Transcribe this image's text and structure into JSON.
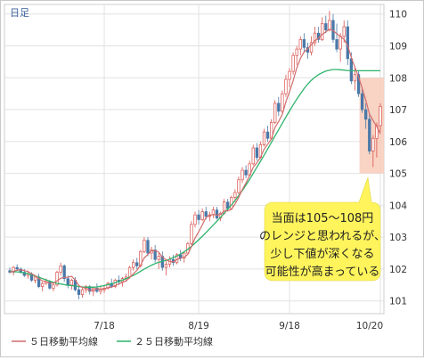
{
  "chart_data": {
    "type": "candlestick",
    "period_label": "日足",
    "x_tick_labels": [
      "7/18",
      "8/19",
      "9/18",
      "10/20"
    ],
    "y_axis": {
      "range": [
        100.6,
        110.3
      ],
      "ticks": [
        101,
        102,
        103,
        104,
        105,
        106,
        107,
        108,
        109,
        110
      ],
      "position": "right"
    },
    "grid": true,
    "colors": {
      "up": "#d9534f",
      "down": "#4a78a8",
      "ma5": "#d06b6b",
      "ma25": "#2db36b",
      "highlight": "#f8cbb8",
      "callout_bg": "#fff45c",
      "axis_label": "#3a5f9a"
    },
    "highlight_band": {
      "from": 105.0,
      "to": 108.0,
      "start_index": 97
    },
    "callout_lines": [
      "当面は105～108円",
      "のレンジと思われるが、",
      "少し下値が深くなる",
      "可能性が高まっている"
    ],
    "legend": [
      {
        "label": "５日移動平均線",
        "color": "#d06b6b"
      },
      {
        "label": "２５日移動平均線",
        "color": "#2db36b"
      }
    ],
    "candles": [
      [
        101.95,
        102.05,
        101.85,
        101.9
      ],
      [
        101.9,
        102.1,
        101.8,
        102.05
      ],
      [
        102.05,
        102.15,
        101.95,
        102.0
      ],
      [
        102.0,
        102.05,
        101.85,
        101.9
      ],
      [
        101.9,
        102.0,
        101.75,
        101.8
      ],
      [
        101.8,
        101.95,
        101.7,
        101.85
      ],
      [
        101.85,
        101.9,
        101.6,
        101.65
      ],
      [
        101.65,
        101.8,
        101.55,
        101.75
      ],
      [
        101.75,
        101.85,
        101.4,
        101.45
      ],
      [
        101.45,
        101.6,
        101.3,
        101.55
      ],
      [
        101.55,
        101.7,
        101.5,
        101.6
      ],
      [
        101.6,
        101.65,
        101.35,
        101.4
      ],
      [
        101.4,
        101.55,
        101.3,
        101.5
      ],
      [
        101.5,
        101.95,
        101.45,
        101.9
      ],
      [
        101.9,
        102.2,
        101.8,
        102.1
      ],
      [
        102.1,
        102.15,
        101.6,
        101.7
      ],
      [
        101.7,
        101.8,
        101.4,
        101.5
      ],
      [
        101.5,
        101.7,
        101.35,
        101.65
      ],
      [
        101.65,
        101.75,
        101.3,
        101.35
      ],
      [
        101.35,
        101.45,
        101.05,
        101.2
      ],
      [
        101.2,
        101.4,
        101.1,
        101.35
      ],
      [
        101.35,
        101.5,
        101.25,
        101.45
      ],
      [
        101.45,
        101.5,
        101.2,
        101.3
      ],
      [
        101.3,
        101.45,
        101.15,
        101.4
      ],
      [
        101.4,
        101.55,
        101.25,
        101.3
      ],
      [
        101.3,
        101.45,
        101.2,
        101.35
      ],
      [
        101.35,
        101.5,
        101.25,
        101.4
      ],
      [
        101.4,
        101.6,
        101.35,
        101.55
      ],
      [
        101.55,
        101.7,
        101.4,
        101.45
      ],
      [
        101.45,
        101.7,
        101.4,
        101.65
      ],
      [
        101.65,
        101.8,
        101.5,
        101.6
      ],
      [
        101.6,
        101.75,
        101.45,
        101.7
      ],
      [
        101.7,
        101.85,
        101.6,
        101.75
      ],
      [
        101.75,
        102.1,
        101.7,
        102.05
      ],
      [
        102.05,
        102.3,
        101.95,
        102.2
      ],
      [
        102.2,
        102.35,
        102.0,
        102.1
      ],
      [
        102.1,
        102.6,
        102.05,
        102.55
      ],
      [
        102.55,
        103.0,
        102.5,
        102.9
      ],
      [
        102.9,
        103.0,
        102.4,
        102.5
      ],
      [
        102.5,
        102.7,
        102.3,
        102.6
      ],
      [
        102.6,
        102.75,
        102.2,
        102.3
      ],
      [
        102.3,
        102.5,
        102.0,
        102.4
      ],
      [
        102.4,
        102.55,
        101.95,
        102.05
      ],
      [
        102.05,
        102.25,
        101.8,
        102.15
      ],
      [
        102.15,
        102.4,
        102.05,
        102.3
      ],
      [
        102.3,
        102.45,
        102.1,
        102.2
      ],
      [
        102.2,
        102.5,
        102.15,
        102.45
      ],
      [
        102.45,
        102.6,
        102.25,
        102.35
      ],
      [
        102.35,
        102.55,
        102.2,
        102.5
      ],
      [
        102.5,
        102.85,
        102.45,
        102.8
      ],
      [
        102.8,
        103.5,
        102.75,
        103.4
      ],
      [
        103.4,
        103.8,
        103.3,
        103.7
      ],
      [
        103.7,
        103.85,
        103.4,
        103.55
      ],
      [
        103.55,
        103.9,
        103.5,
        103.8
      ],
      [
        103.8,
        103.95,
        103.55,
        103.65
      ],
      [
        103.65,
        103.8,
        103.5,
        103.7
      ],
      [
        103.7,
        103.95,
        103.6,
        103.85
      ],
      [
        103.85,
        103.95,
        103.55,
        103.6
      ],
      [
        103.6,
        103.8,
        103.5,
        103.75
      ],
      [
        103.75,
        104.2,
        103.7,
        104.1
      ],
      [
        104.1,
        104.2,
        103.8,
        103.9
      ],
      [
        103.9,
        104.3,
        103.85,
        104.25
      ],
      [
        104.25,
        104.5,
        104.1,
        104.4
      ],
      [
        104.4,
        104.9,
        104.35,
        104.8
      ],
      [
        104.8,
        105.2,
        104.7,
        105.1
      ],
      [
        105.1,
        105.25,
        104.85,
        104.95
      ],
      [
        104.95,
        105.4,
        104.9,
        105.3
      ],
      [
        105.3,
        105.9,
        105.25,
        105.8
      ],
      [
        105.8,
        105.95,
        105.4,
        105.5
      ],
      [
        105.5,
        106.0,
        105.45,
        105.9
      ],
      [
        105.9,
        106.4,
        105.85,
        106.3
      ],
      [
        106.3,
        106.5,
        106.0,
        106.1
      ],
      [
        106.1,
        106.7,
        106.05,
        106.6
      ],
      [
        106.6,
        107.3,
        106.55,
        107.2
      ],
      [
        107.2,
        107.4,
        106.8,
        106.95
      ],
      [
        106.95,
        107.6,
        106.9,
        107.5
      ],
      [
        107.5,
        108.1,
        107.4,
        107.95
      ],
      [
        107.95,
        108.3,
        107.7,
        108.2
      ],
      [
        108.2,
        108.8,
        108.1,
        108.7
      ],
      [
        108.7,
        109.0,
        108.4,
        108.9
      ],
      [
        108.9,
        109.3,
        108.7,
        109.2
      ],
      [
        109.2,
        109.4,
        108.8,
        108.95
      ],
      [
        108.95,
        109.1,
        108.6,
        108.8
      ],
      [
        108.8,
        109.3,
        108.7,
        109.1
      ],
      [
        109.1,
        109.6,
        109.0,
        109.4
      ],
      [
        109.4,
        109.6,
        109.1,
        109.2
      ],
      [
        109.2,
        109.9,
        109.15,
        109.7
      ],
      [
        109.7,
        109.95,
        109.4,
        109.5
      ],
      [
        109.5,
        110.1,
        109.45,
        109.8
      ],
      [
        109.8,
        110.0,
        109.1,
        109.2
      ],
      [
        109.2,
        109.7,
        108.8,
        108.9
      ],
      [
        108.9,
        109.4,
        108.5,
        109.3
      ],
      [
        109.3,
        109.8,
        109.1,
        109.6
      ],
      [
        109.6,
        109.8,
        108.4,
        108.6
      ],
      [
        108.6,
        108.8,
        107.8,
        107.9
      ],
      [
        107.9,
        108.3,
        107.6,
        108.1
      ],
      [
        108.1,
        108.2,
        107.4,
        107.5
      ],
      [
        107.5,
        107.7,
        106.9,
        107.0
      ],
      [
        107.0,
        107.2,
        106.4,
        106.7
      ],
      [
        106.7,
        106.9,
        105.6,
        105.7
      ],
      [
        105.7,
        106.2,
        105.2,
        106.1
      ],
      [
        106.1,
        106.6,
        105.5,
        106.5
      ],
      [
        106.5,
        107.2,
        106.3,
        107.1
      ]
    ],
    "ma5": [
      101.9,
      101.93,
      101.96,
      101.98,
      101.95,
      101.92,
      101.85,
      101.79,
      101.7,
      101.63,
      101.61,
      101.56,
      101.56,
      101.63,
      101.71,
      101.74,
      101.74,
      101.77,
      101.66,
      101.48,
      101.42,
      101.4,
      101.33,
      101.34,
      101.38,
      101.37,
      101.38,
      101.42,
      101.43,
      101.48,
      101.53,
      101.58,
      101.63,
      101.73,
      101.85,
      101.96,
      102.12,
      102.35,
      102.46,
      102.57,
      102.58,
      102.53,
      102.37,
      102.29,
      102.24,
      102.22,
      102.3,
      102.34,
      102.37,
      102.46,
      102.7,
      102.97,
      103.17,
      103.39,
      103.62,
      103.68,
      103.71,
      103.69,
      103.71,
      103.82,
      103.83,
      103.87,
      104.04,
      104.24,
      104.49,
      104.7,
      104.93,
      105.19,
      105.33,
      105.5,
      105.76,
      105.92,
      106.08,
      106.44,
      106.63,
      106.85,
      107.25,
      107.56,
      107.91,
      108.31,
      108.61,
      108.81,
      108.91,
      109.03,
      109.17,
      109.25,
      109.36,
      109.44,
      109.52,
      109.48,
      109.38,
      109.3,
      109.21,
      109.01,
      108.64,
      108.32,
      108.03,
      107.67,
      107.29,
      106.86,
      106.66,
      106.47,
      106.24
    ],
    "ma25": [
      101.92,
      101.92,
      101.91,
      101.9,
      101.88,
      101.85,
      101.82,
      101.78,
      101.74,
      101.7,
      101.66,
      101.62,
      101.58,
      101.55,
      101.53,
      101.51,
      101.49,
      101.48,
      101.47,
      101.45,
      101.44,
      101.43,
      101.43,
      101.43,
      101.44,
      101.46,
      101.48,
      101.51,
      101.54,
      101.57,
      101.61,
      101.65,
      101.7,
      101.75,
      101.8,
      101.86,
      101.93,
      102.0,
      102.06,
      102.12,
      102.17,
      102.21,
      102.24,
      102.27,
      102.31,
      102.36,
      102.41,
      102.47,
      102.54,
      102.62,
      102.71,
      102.81,
      102.92,
      103.03,
      103.14,
      103.26,
      103.38,
      103.5,
      103.62,
      103.75,
      103.88,
      104.01,
      104.15,
      104.3,
      104.46,
      104.63,
      104.81,
      105.0,
      105.19,
      105.38,
      105.57,
      105.77,
      105.97,
      106.17,
      106.37,
      106.57,
      106.77,
      106.96,
      107.15,
      107.33,
      107.5,
      107.66,
      107.8,
      107.92,
      108.02,
      108.1,
      108.16,
      108.21,
      108.24,
      108.26,
      108.26,
      108.25,
      108.24,
      108.23,
      108.22,
      108.22,
      108.22,
      108.22,
      108.22,
      108.22,
      108.22,
      108.22,
      108.22
    ]
  }
}
